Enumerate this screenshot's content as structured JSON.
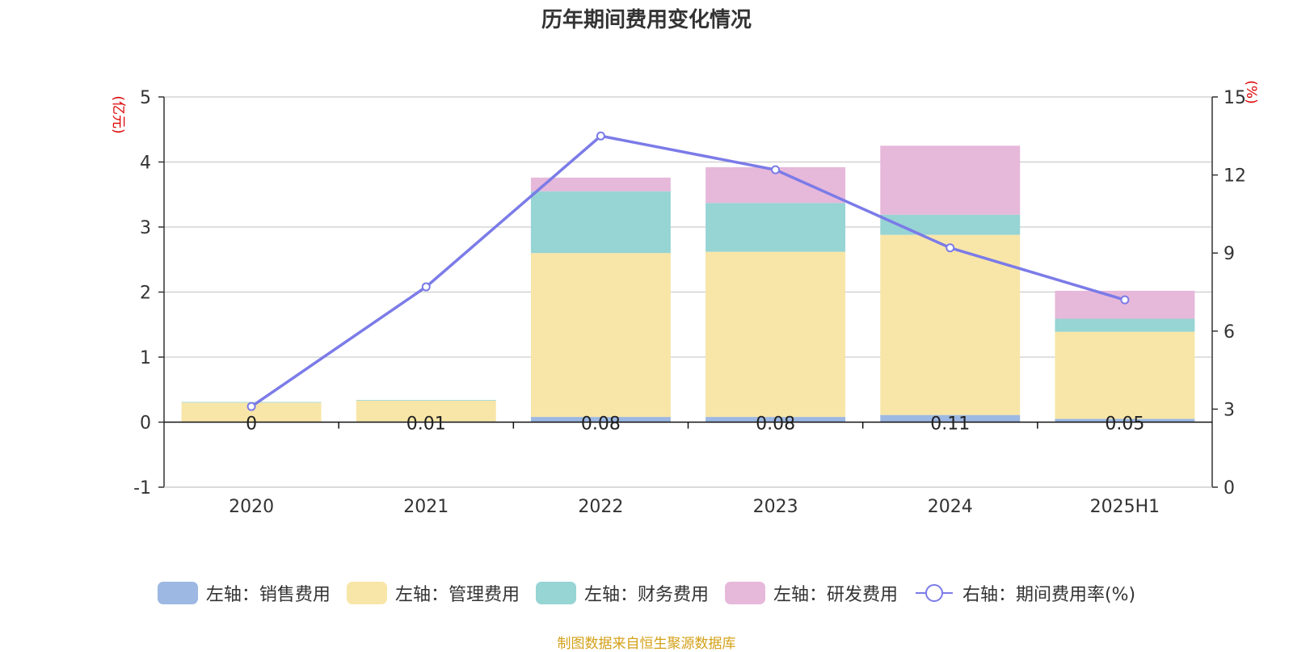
{
  "chart_title": "历年期间费用变化情况",
  "source_note": "制图数据来自恒生聚源数据库",
  "colors": {
    "sales": "#9db8e2",
    "admin": "#f8e6a8",
    "finance": "#97d4d4",
    "rd": "#e6b8da",
    "rate": "#7b7be8",
    "axis_unit": "#dd0000"
  },
  "chart_data": {
    "type": "bar",
    "stacked": true,
    "categories": [
      "2020",
      "2021",
      "2022",
      "2023",
      "2024",
      "2025H1"
    ],
    "series": [
      {
        "name": "左轴：销售费用",
        "axis": "left",
        "values": [
          0,
          0.01,
          0.08,
          0.08,
          0.11,
          0.05
        ],
        "labels": [
          "0",
          "0.01",
          "0.08",
          "0.08",
          "0.11",
          "0.05"
        ]
      },
      {
        "name": "左轴：管理费用",
        "axis": "left",
        "values": [
          0.3,
          0.32,
          2.52,
          2.54,
          2.77,
          1.34
        ]
      },
      {
        "name": "左轴：财务费用",
        "axis": "left",
        "values": [
          0.01,
          0.01,
          0.95,
          0.75,
          0.31,
          0.2
        ]
      },
      {
        "name": "左轴：研发费用",
        "axis": "left",
        "values": [
          0,
          0,
          0.21,
          0.55,
          1.06,
          0.43
        ]
      },
      {
        "name": "右轴：期间费用率(%)",
        "axis": "right",
        "type": "line",
        "values": [
          3.1,
          7.7,
          13.5,
          12.2,
          9.2,
          7.2
        ]
      }
    ],
    "left_axis": {
      "unit": "(亿元)",
      "ylim": [
        -1,
        5
      ],
      "ticks": [
        "-1",
        "0",
        "1",
        "2",
        "3",
        "4",
        "5"
      ]
    },
    "right_axis": {
      "unit": "(%)",
      "ylim": [
        0,
        15
      ],
      "ticks": [
        "0",
        "3",
        "6",
        "9",
        "12",
        "15"
      ]
    },
    "grid": true,
    "legend_position": "bottom"
  }
}
